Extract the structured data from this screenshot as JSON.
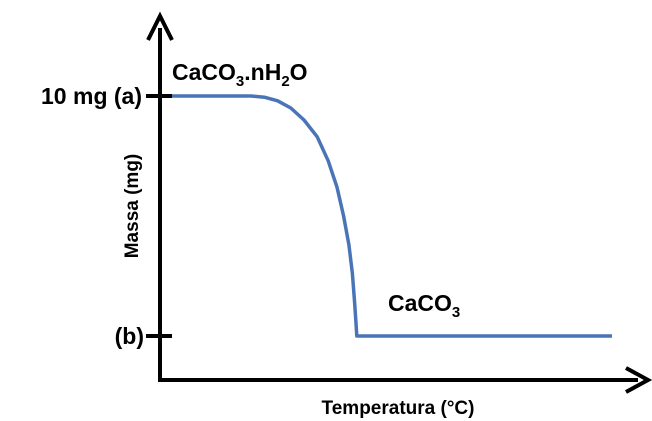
{
  "chart_data": {
    "type": "line",
    "xlabel": "Temperatura (°C)",
    "ylabel": "Massa (mg)",
    "y_ticks": [
      {
        "label": "10 mg (a)",
        "level": 1.0
      },
      {
        "label": "(b)",
        "level": 0.0
      }
    ],
    "series": [
      {
        "color": "#4a74b8",
        "points": [
          [
            0.0,
            1.0
          ],
          [
            0.18,
            1.0
          ],
          [
            0.21,
            0.995
          ],
          [
            0.24,
            0.98
          ],
          [
            0.27,
            0.95
          ],
          [
            0.3,
            0.9
          ],
          [
            0.33,
            0.83
          ],
          [
            0.355,
            0.73
          ],
          [
            0.375,
            0.62
          ],
          [
            0.39,
            0.5
          ],
          [
            0.402,
            0.38
          ],
          [
            0.41,
            0.26
          ],
          [
            0.415,
            0.14
          ],
          [
            0.418,
            0.06
          ],
          [
            0.42,
            0.0
          ],
          [
            1.0,
            0.0
          ]
        ]
      }
    ],
    "annotations": [
      {
        "base": "CaCO",
        "sub1": "3",
        "mid": ".nH",
        "sub2": "2",
        "tail": "O"
      },
      {
        "base": "CaCO",
        "sub1": "3"
      }
    ],
    "grid": false,
    "legend": "none"
  }
}
